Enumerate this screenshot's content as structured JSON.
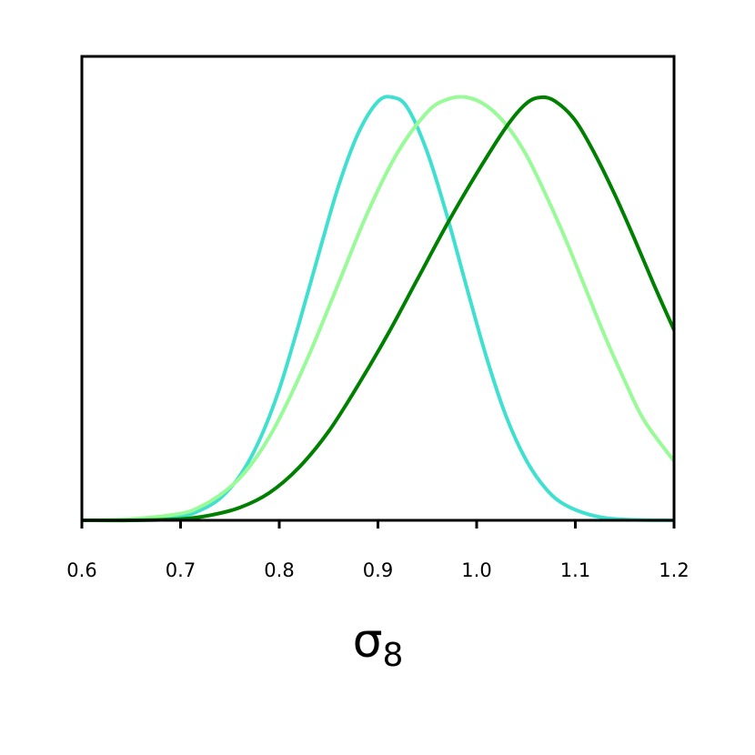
{
  "chart_data": {
    "type": "line",
    "xlabel_main": "σ",
    "xlabel_sub": "8",
    "xlim": [
      0.6,
      1.2
    ],
    "ylim": [
      0,
      1.0
    ],
    "x_ticks": [
      0.6,
      0.7,
      0.8,
      0.9,
      1.0,
      1.1,
      1.2
    ],
    "x_tick_labels": [
      "0.6",
      "0.7",
      "0.8",
      "0.9",
      "1.0",
      "1.1",
      "1.2"
    ],
    "y_ticks_shown": false,
    "grid": false,
    "legend": "none",
    "series": [
      {
        "color": "#40e0d0",
        "x": [
          0.6,
          0.65,
          0.7,
          0.72,
          0.74,
          0.76,
          0.78,
          0.8,
          0.82,
          0.84,
          0.86,
          0.88,
          0.9,
          0.915,
          0.93,
          0.95,
          0.97,
          0.99,
          1.01,
          1.03,
          1.05,
          1.07,
          1.09,
          1.12,
          1.15,
          1.2
        ],
        "y": [
          0.0,
          0.001,
          0.01,
          0.024,
          0.052,
          0.105,
          0.19,
          0.31,
          0.465,
          0.63,
          0.79,
          0.915,
          0.99,
          1.0,
          0.975,
          0.87,
          0.72,
          0.55,
          0.385,
          0.245,
          0.143,
          0.075,
          0.036,
          0.01,
          0.002,
          0.0
        ]
      },
      {
        "color": "#98fb98",
        "x": [
          0.6,
          0.65,
          0.7,
          0.72,
          0.74,
          0.76,
          0.78,
          0.8,
          0.83,
          0.86,
          0.89,
          0.92,
          0.95,
          0.97,
          0.99,
          1.01,
          1.03,
          1.05,
          1.07,
          1.09,
          1.11,
          1.13,
          1.15,
          1.17,
          1.2
        ],
        "y": [
          0.0,
          0.003,
          0.016,
          0.032,
          0.06,
          0.1,
          0.16,
          0.24,
          0.39,
          0.56,
          0.73,
          0.87,
          0.965,
          0.995,
          1.0,
          0.98,
          0.935,
          0.865,
          0.77,
          0.665,
          0.55,
          0.435,
          0.33,
          0.235,
          0.14
        ]
      },
      {
        "color": "#008000",
        "x": [
          0.6,
          0.65,
          0.7,
          0.73,
          0.76,
          0.79,
          0.82,
          0.85,
          0.88,
          0.91,
          0.94,
          0.97,
          1.0,
          1.03,
          1.05,
          1.065,
          1.08,
          1.1,
          1.12,
          1.14,
          1.16,
          1.18,
          1.2
        ],
        "y": [
          0.0,
          0.0,
          0.003,
          0.012,
          0.03,
          0.065,
          0.125,
          0.21,
          0.32,
          0.44,
          0.57,
          0.7,
          0.82,
          0.93,
          0.985,
          1.0,
          0.99,
          0.945,
          0.865,
          0.77,
          0.665,
          0.555,
          0.45
        ]
      }
    ]
  }
}
